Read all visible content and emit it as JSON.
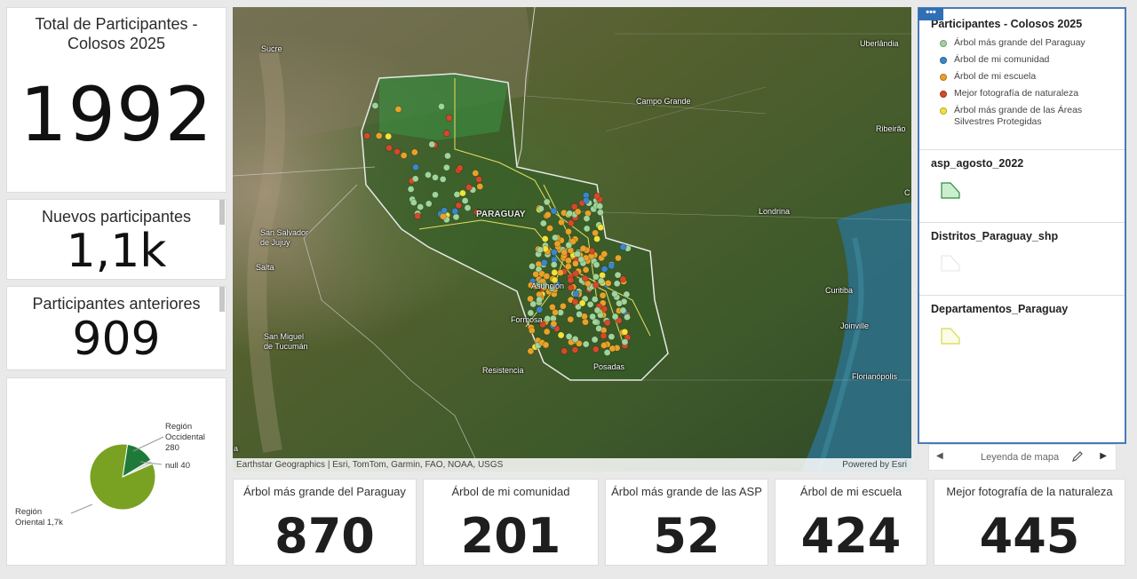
{
  "indicators": {
    "total": {
      "title": "Total de Participantes - Colosos 2025",
      "value": "1992"
    },
    "nuevos": {
      "title": "Nuevos participantes",
      "value": "1,1k"
    },
    "anteriores": {
      "title": "Participantes anteriores",
      "value": "909"
    }
  },
  "chart_data": {
    "type": "pie",
    "slices": [
      {
        "label": "Región Oriental",
        "display_value": "1,7k",
        "value": 1672,
        "color": "#7aa222"
      },
      {
        "label": "Región Occidental",
        "display_value": "280",
        "value": 280,
        "color": "#1f7a3a"
      },
      {
        "label": "null",
        "display_value": "40",
        "value": 40,
        "color": "#d9d9d9"
      }
    ],
    "labels": {
      "occidental_line1": "Región",
      "occidental_line2": "Occidental",
      "occidental_line3": "280",
      "null_label": "null 40",
      "oriental_line1": "Región",
      "oriental_line2": "Oriental 1,7k"
    }
  },
  "map": {
    "attribution": "Earthstar Geographics | Esri, TomTom, Garmin, FAO, NOAA, USGS",
    "powered_by": "Powered by Esri",
    "places": {
      "sucre": "Sucre",
      "uberlandia": "Uberlândia",
      "campo_grande": "Campo Grande",
      "ribeirao": "Ribeirão",
      "paraguay": "PARAGUAY",
      "londrina": "Londrina",
      "san_salvador_1": "San Salvador",
      "san_salvador_2": "de Jujuy",
      "salta": "Salta",
      "asuncion": "Asunción",
      "formosa": "Formosa",
      "curitiba": "Curitiba",
      "joinville": "Joinville",
      "san_miguel_1": "San Miguel",
      "san_miguel_2": "de Tucumán",
      "resistencia": "Resistencia",
      "posadas": "Posadas",
      "florianopolis": "Florianópolis",
      "edge_c": "C",
      "edge_a": "a"
    }
  },
  "legend": {
    "menu": "•••",
    "sections": [
      {
        "title": "Participantes - Colosos 2025",
        "items": [
          {
            "label": "Árbol más grande del Paraguay",
            "color": "#9fd49a"
          },
          {
            "label": "Árbol de mi comunidad",
            "color": "#3c86c8"
          },
          {
            "label": "Árbol de mi escuela",
            "color": "#e8a22a"
          },
          {
            "label": "Mejor fotografía de naturaleza",
            "color": "#d24a2a"
          },
          {
            "label": "Árbol más grande de las Áreas Silvestres Protegidas",
            "color": "#f2e23a"
          }
        ]
      },
      {
        "title": "asp_agosto_2022"
      },
      {
        "title": "Distritos_Paraguay_shp"
      },
      {
        "title": "Departamentos_Paraguay"
      }
    ],
    "footer_label": "Leyenda de mapa",
    "prev": "◀",
    "next": "▶"
  },
  "bottom": [
    {
      "title": "Árbol más grande del Paraguay",
      "value": "870"
    },
    {
      "title": "Árbol de mi comunidad",
      "value": "201"
    },
    {
      "title": "Árbol más grande de las ASP",
      "value": "52"
    },
    {
      "title": "Árbol de mi escuela",
      "value": "424"
    },
    {
      "title": "Mejor fotografía de la naturaleza",
      "value": "445"
    }
  ]
}
